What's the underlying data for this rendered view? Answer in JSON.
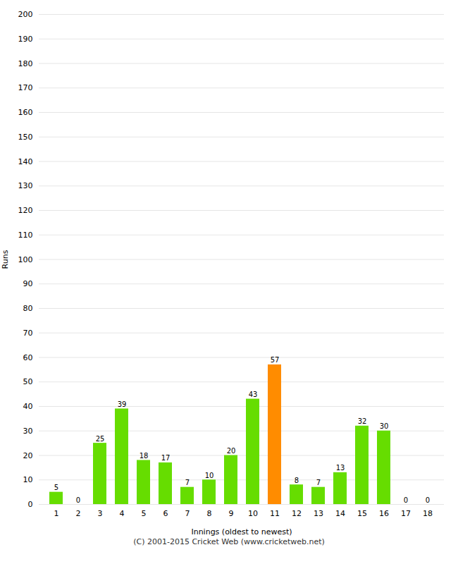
{
  "chart_data": {
    "type": "bar",
    "categories": [
      "1",
      "2",
      "3",
      "4",
      "5",
      "6",
      "7",
      "8",
      "9",
      "10",
      "11",
      "12",
      "13",
      "14",
      "15",
      "16",
      "17",
      "18"
    ],
    "values": [
      5,
      0,
      25,
      39,
      18,
      17,
      7,
      10,
      20,
      43,
      57,
      8,
      7,
      13,
      32,
      30,
      0,
      0
    ],
    "colors": [
      "#66dd00",
      "#66dd00",
      "#66dd00",
      "#66dd00",
      "#66dd00",
      "#66dd00",
      "#66dd00",
      "#66dd00",
      "#66dd00",
      "#66dd00",
      "#ff8c00",
      "#66dd00",
      "#66dd00",
      "#66dd00",
      "#66dd00",
      "#66dd00",
      "#66dd00",
      "#66dd00"
    ],
    "xlabel": "Innings (oldest to newest)",
    "ylabel": "Runs",
    "ylim": [
      0,
      200
    ],
    "yticks": [
      0,
      10,
      20,
      30,
      40,
      50,
      60,
      70,
      80,
      90,
      100,
      110,
      120,
      130,
      140,
      150,
      160,
      170,
      180,
      190,
      200
    ],
    "grid": true,
    "data_labels": true,
    "caption": "(C) 2001-2015 Cricket Web (www.cricketweb.net)"
  }
}
